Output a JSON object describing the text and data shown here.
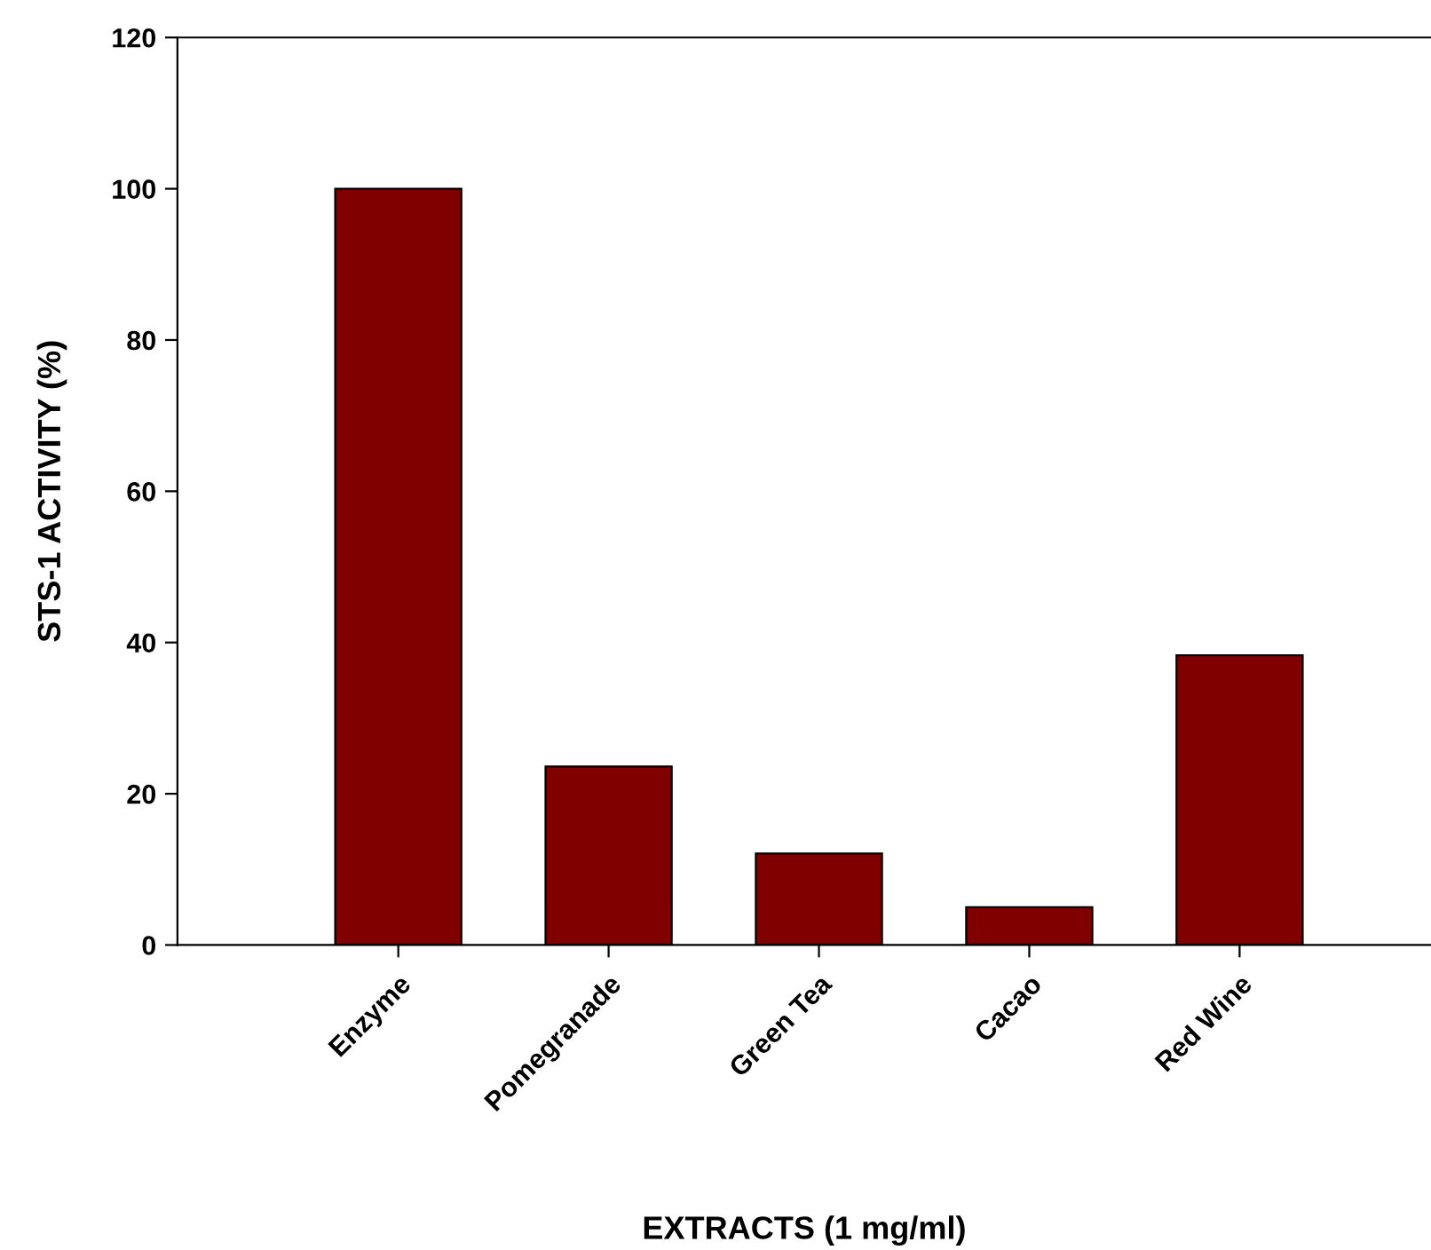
{
  "chart_data": {
    "type": "bar",
    "xlabel": "EXTRACTS (1 mg/ml)",
    "ylabel": "STS-1 ACTIVITY (%)",
    "categories": [
      "Enzyme",
      "Pomegranade",
      "Green Tea",
      "Cacao",
      "Red Wine"
    ],
    "values": [
      100,
      23.6,
      12.1,
      5.0,
      38.3
    ],
    "color": "#800000",
    "ylim": [
      0,
      120
    ],
    "yticks": [
      0,
      20,
      40,
      60,
      80,
      100,
      120
    ],
    "grid": false,
    "legend": false
  }
}
